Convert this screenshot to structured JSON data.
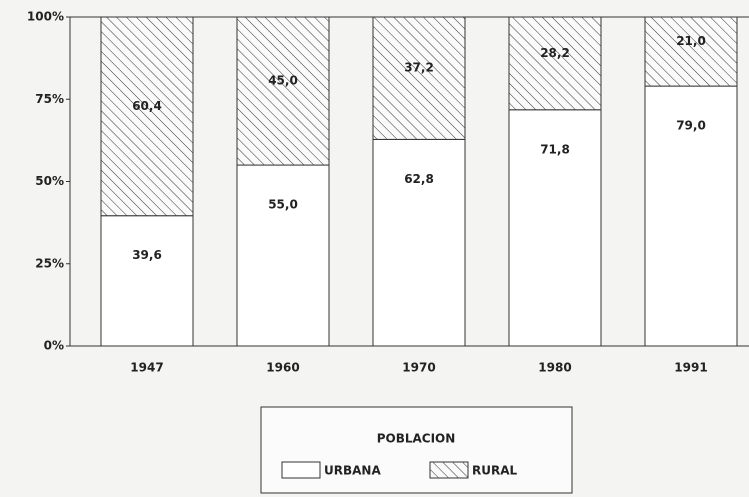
{
  "chart_data": {
    "type": "stacked_bar",
    "categories": [
      "1947",
      "1960",
      "1970",
      "1980",
      "1991"
    ],
    "series": [
      {
        "name": "URBANA",
        "color": "#ffffff",
        "values": [
          39.6,
          55.0,
          62.8,
          71.8,
          79.0
        ],
        "value_labels": [
          "39,6",
          "55,0",
          "62,8",
          "71,8",
          "79,0"
        ]
      },
      {
        "name": "RURAL",
        "color": "hatch",
        "values": [
          60.4,
          45.0,
          37.2,
          28.2,
          21.0
        ],
        "value_labels": [
          "60,4",
          "45,0",
          "37,2",
          "28,2",
          "21,0"
        ]
      }
    ],
    "ylim": [
      0,
      100
    ],
    "yticks": [
      {
        "value": 0,
        "label": "0%"
      },
      {
        "value": 25,
        "label": "25%"
      },
      {
        "value": 50,
        "label": "50%"
      },
      {
        "value": 75,
        "label": "75%"
      },
      {
        "value": 100,
        "label": "100%"
      }
    ],
    "legend_title": "POBLACION",
    "legend": "bottom"
  }
}
